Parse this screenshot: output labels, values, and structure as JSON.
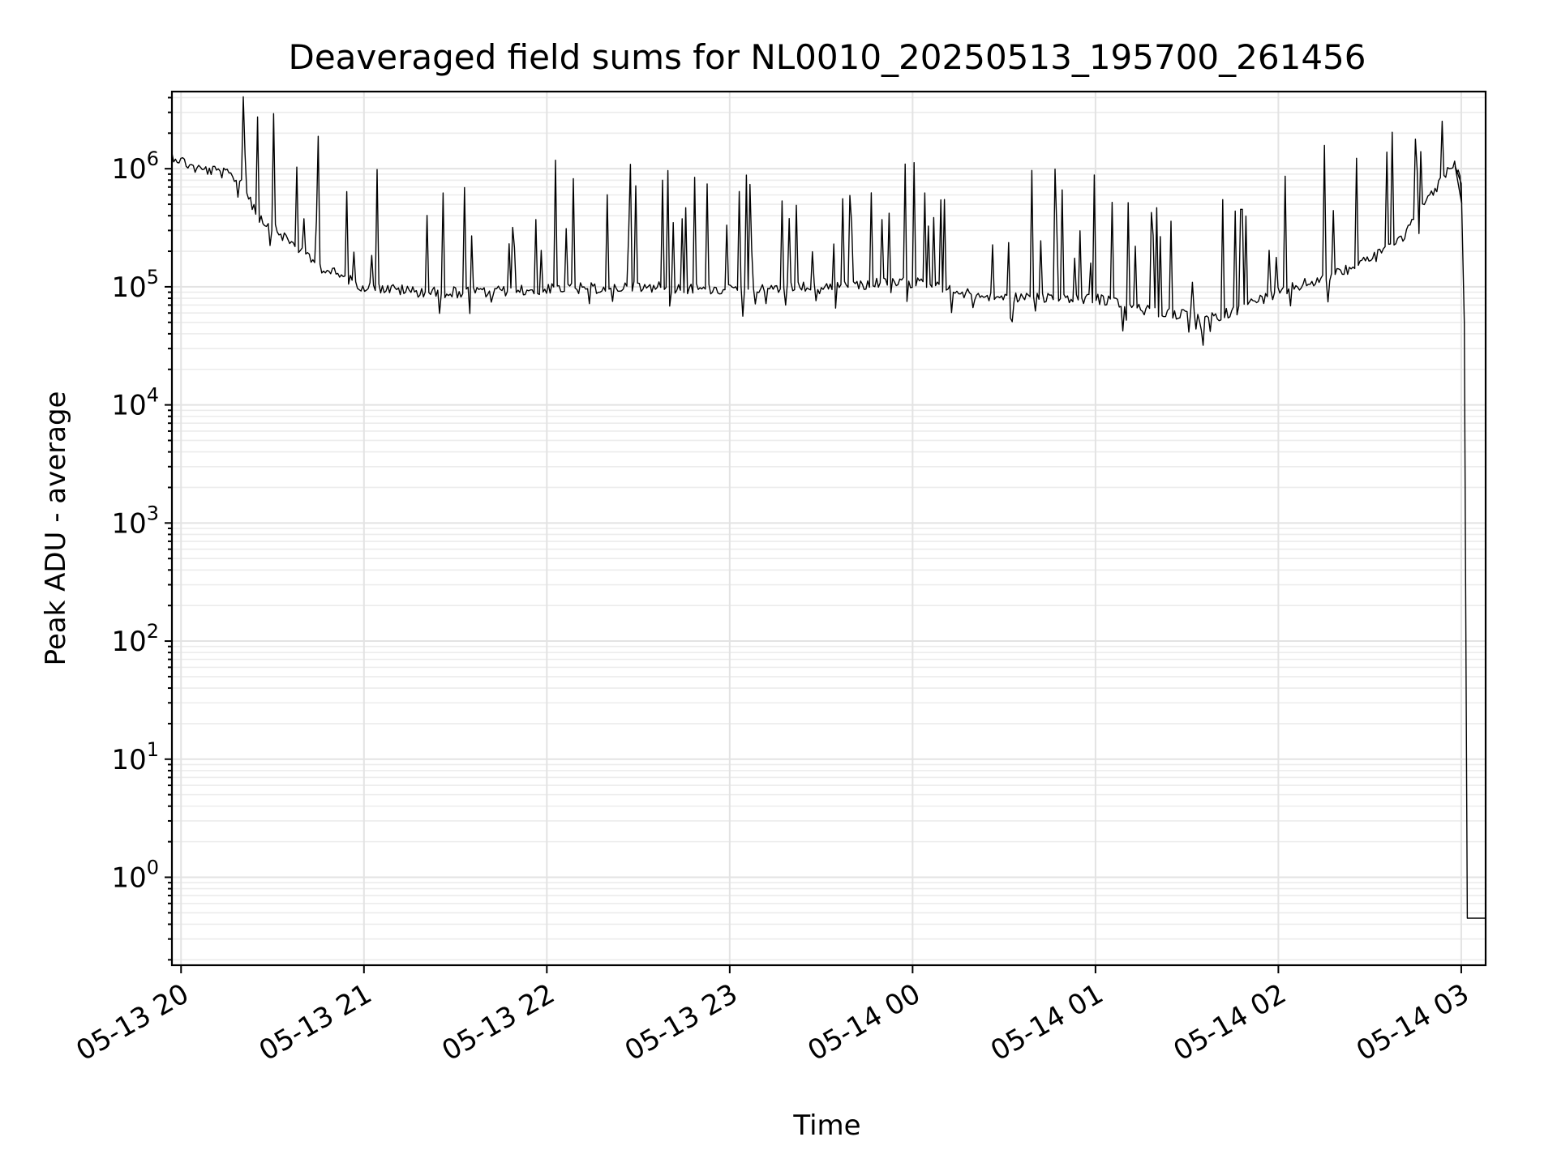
{
  "chart_data": {
    "type": "line",
    "title": "Deaveraged field sums for NL0010_20250513_195700_261456",
    "xlabel": "Time",
    "ylabel": "Peak ADU - average",
    "yscale": "log",
    "xlim": [
      "2025-05-13T19:57:00",
      "2025-05-14T03:08:00"
    ],
    "ylim": [
      0.18,
      4500000
    ],
    "grid": true,
    "x_ticks": [
      {
        "t": "2025-05-13T20:00:00",
        "label": "05-13 20"
      },
      {
        "t": "2025-05-13T21:00:00",
        "label": "05-13 21"
      },
      {
        "t": "2025-05-13T22:00:00",
        "label": "05-13 22"
      },
      {
        "t": "2025-05-13T23:00:00",
        "label": "05-13 23"
      },
      {
        "t": "2025-05-14T00:00:00",
        "label": "05-14 00"
      },
      {
        "t": "2025-05-14T01:00:00",
        "label": "05-14 01"
      },
      {
        "t": "2025-05-14T02:00:00",
        "label": "05-14 02"
      },
      {
        "t": "2025-05-14T03:00:00",
        "label": "05-14 03"
      }
    ],
    "y_ticks": [
      {
        "value": 1000000,
        "base": "10",
        "exp": "6"
      },
      {
        "value": 100000,
        "base": "10",
        "exp": "5"
      },
      {
        "value": 10000,
        "base": "10",
        "exp": "4"
      },
      {
        "value": 1000,
        "base": "10",
        "exp": "3"
      },
      {
        "value": 100,
        "base": "10",
        "exp": "2"
      },
      {
        "value": 10,
        "base": "10",
        "exp": "1"
      },
      {
        "value": 1,
        "base": "10",
        "exp": "0"
      }
    ],
    "series": [
      {
        "color": "#000000",
        "x": [
          "2025-05-13T19:57:00",
          "2025-05-13T20:05:00",
          "2025-05-13T20:12:00",
          "2025-05-13T20:20:00",
          "2025-05-13T20:25:00",
          "2025-05-13T20:35:00",
          "2025-05-13T20:45:00",
          "2025-05-13T21:00:00",
          "2025-05-13T21:20:00",
          "2025-05-13T21:40:00",
          "2025-05-13T22:00:00",
          "2025-05-13T22:30:00",
          "2025-05-13T23:00:00",
          "2025-05-13T23:30:00",
          "2025-05-14T00:00:00",
          "2025-05-14T00:20:00",
          "2025-05-14T00:40:00",
          "2025-05-14T01:00:00",
          "2025-05-14T01:20:00",
          "2025-05-14T01:40:00",
          "2025-05-14T02:00:00",
          "2025-05-14T02:20:00",
          "2025-05-14T02:40:00",
          "2025-05-14T02:55:00",
          "2025-05-14T02:58:00",
          "2025-05-14T03:00:00",
          "2025-05-14T03:01:00",
          "2025-05-14T03:02:00",
          "2025-05-14T03:08:00"
        ],
        "y": [
          1300000,
          1000000,
          950000,
          800000,
          400000,
          250000,
          150000,
          100000,
          90000,
          90000,
          95000,
          100000,
          95000,
          100000,
          110000,
          85000,
          80000,
          80000,
          60000,
          55000,
          90000,
          130000,
          250000,
          900000,
          1050000,
          750000,
          50000,
          0.45,
          0.45
        ]
      }
    ]
  }
}
